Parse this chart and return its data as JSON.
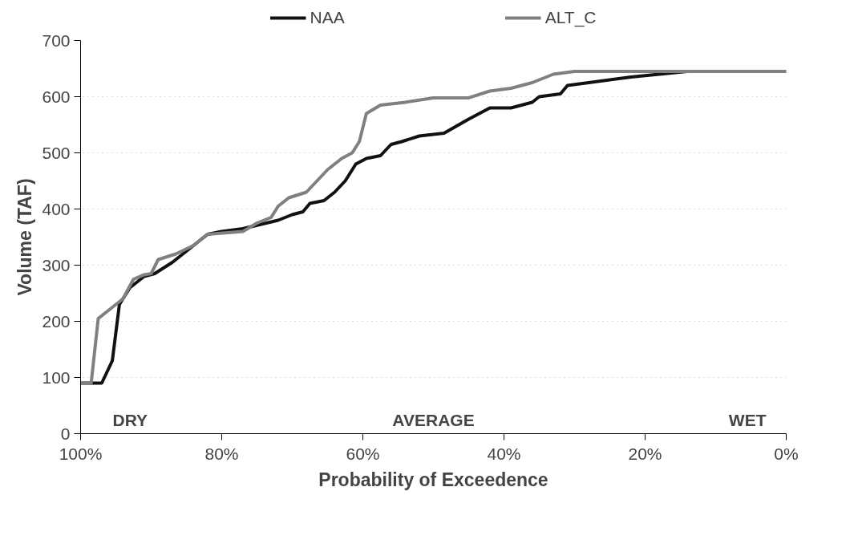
{
  "chart_data": {
    "type": "line",
    "xlabel": "Probability of Exceedence",
    "ylabel": "Volume (TAF)",
    "xlim": [
      100,
      0
    ],
    "ylim": [
      0,
      700
    ],
    "xticks": [
      {
        "value": 100,
        "label": "100%"
      },
      {
        "value": 80,
        "label": "80%"
      },
      {
        "value": 60,
        "label": "60%"
      },
      {
        "value": 40,
        "label": "40%"
      },
      {
        "value": 20,
        "label": "20%"
      },
      {
        "value": 0,
        "label": "0%"
      }
    ],
    "yticks": [
      0,
      100,
      200,
      300,
      400,
      500,
      600,
      700
    ],
    "grid": "y",
    "legend": "top",
    "line_style": "solid",
    "marker": "none",
    "annotations": [
      "DRY",
      "AVERAGE",
      "WET"
    ],
    "series": [
      {
        "name": "NAA",
        "color": "#111111",
        "x": [
          100,
          97,
          95.5,
          94.5,
          93,
          91,
          89.5,
          87,
          84,
          82,
          80,
          77,
          72,
          70,
          68.5,
          67.5,
          65.5,
          64,
          62.5,
          61,
          59.5,
          57.5,
          56,
          54.5,
          52,
          48.5,
          45,
          42,
          39,
          36,
          35,
          32,
          31,
          28,
          25,
          22,
          18,
          14,
          0
        ],
        "values": [
          90,
          90,
          130,
          230,
          260,
          280,
          285,
          305,
          335,
          355,
          360,
          365,
          380,
          390,
          395,
          410,
          415,
          430,
          450,
          480,
          490,
          495,
          515,
          520,
          530,
          535,
          560,
          580,
          580,
          590,
          600,
          605,
          620,
          625,
          630,
          635,
          640,
          645,
          645
        ]
      },
      {
        "name": "ALT_C",
        "color": "#808080",
        "x": [
          100,
          98.5,
          97.5,
          94,
          92.5,
          91,
          90,
          89,
          86.5,
          84,
          82,
          77,
          75,
          73,
          72,
          70.5,
          68,
          66.5,
          65,
          63,
          61.5,
          60.5,
          59.5,
          57.5,
          54,
          50,
          45,
          42,
          39,
          36,
          33,
          30,
          0
        ],
        "values": [
          90,
          90,
          205,
          240,
          275,
          283,
          285,
          310,
          320,
          335,
          355,
          360,
          375,
          385,
          405,
          420,
          430,
          450,
          470,
          490,
          500,
          520,
          570,
          585,
          590,
          598,
          598,
          610,
          615,
          625,
          640,
          645,
          645
        ]
      }
    ]
  }
}
